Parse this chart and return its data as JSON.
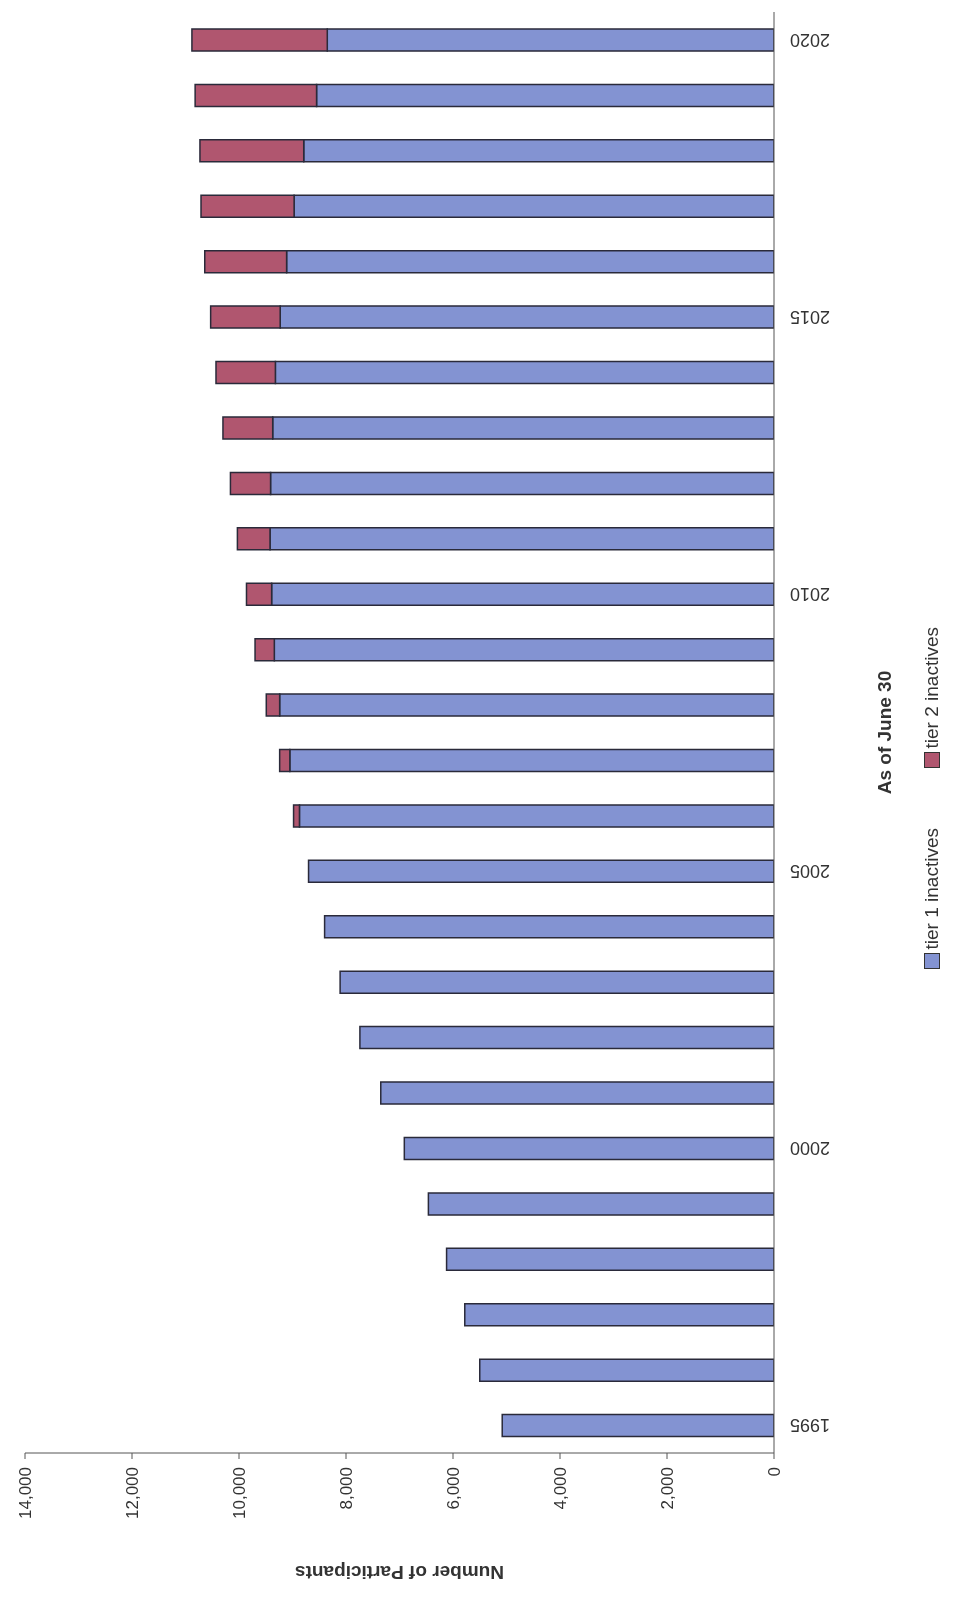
{
  "chart_data": {
    "type": "bar",
    "orientation": "horizontal",
    "xlabel": "Number of Participants",
    "ylabel": "As of June 30",
    "categories": [
      "2020",
      null,
      null,
      null,
      null,
      "2015",
      null,
      null,
      null,
      null,
      "2010",
      null,
      null,
      null,
      null,
      "2005",
      null,
      null,
      null,
      null,
      "2000",
      null,
      null,
      null,
      null,
      "1995"
    ],
    "series": [
      {
        "name": "tier 1 inactives",
        "color": "#8393d2",
        "values": [
          8350,
          8550,
          8790,
          8970,
          9110,
          9230,
          9320,
          9370,
          9410,
          9420,
          9390,
          9340,
          9240,
          9050,
          8870,
          8700,
          8400,
          8110,
          7740,
          7350,
          6910,
          6460,
          6120,
          5780,
          5500,
          5080
        ]
      },
      {
        "name": "tier 2 inactives",
        "color": "#b0566f",
        "values": [
          2530,
          2270,
          1940,
          1740,
          1530,
          1300,
          1110,
          930,
          750,
          610,
          470,
          360,
          250,
          190,
          110,
          0,
          0,
          0,
          0,
          0,
          0,
          0,
          0,
          0,
          0,
          0
        ]
      }
    ],
    "stacked": true,
    "xlim": [
      14000,
      0
    ],
    "xticks": [
      {
        "value": 14000,
        "label": "14,000"
      },
      {
        "value": 12000,
        "label": "12,000"
      },
      {
        "value": 10000,
        "label": "10,000"
      },
      {
        "value": 8000,
        "label": "8,000"
      },
      {
        "value": 6000,
        "label": "6,000"
      },
      {
        "value": 4000,
        "label": "4,000"
      },
      {
        "value": 2000,
        "label": "2,000"
      },
      0
    ],
    "legend": "right"
  }
}
